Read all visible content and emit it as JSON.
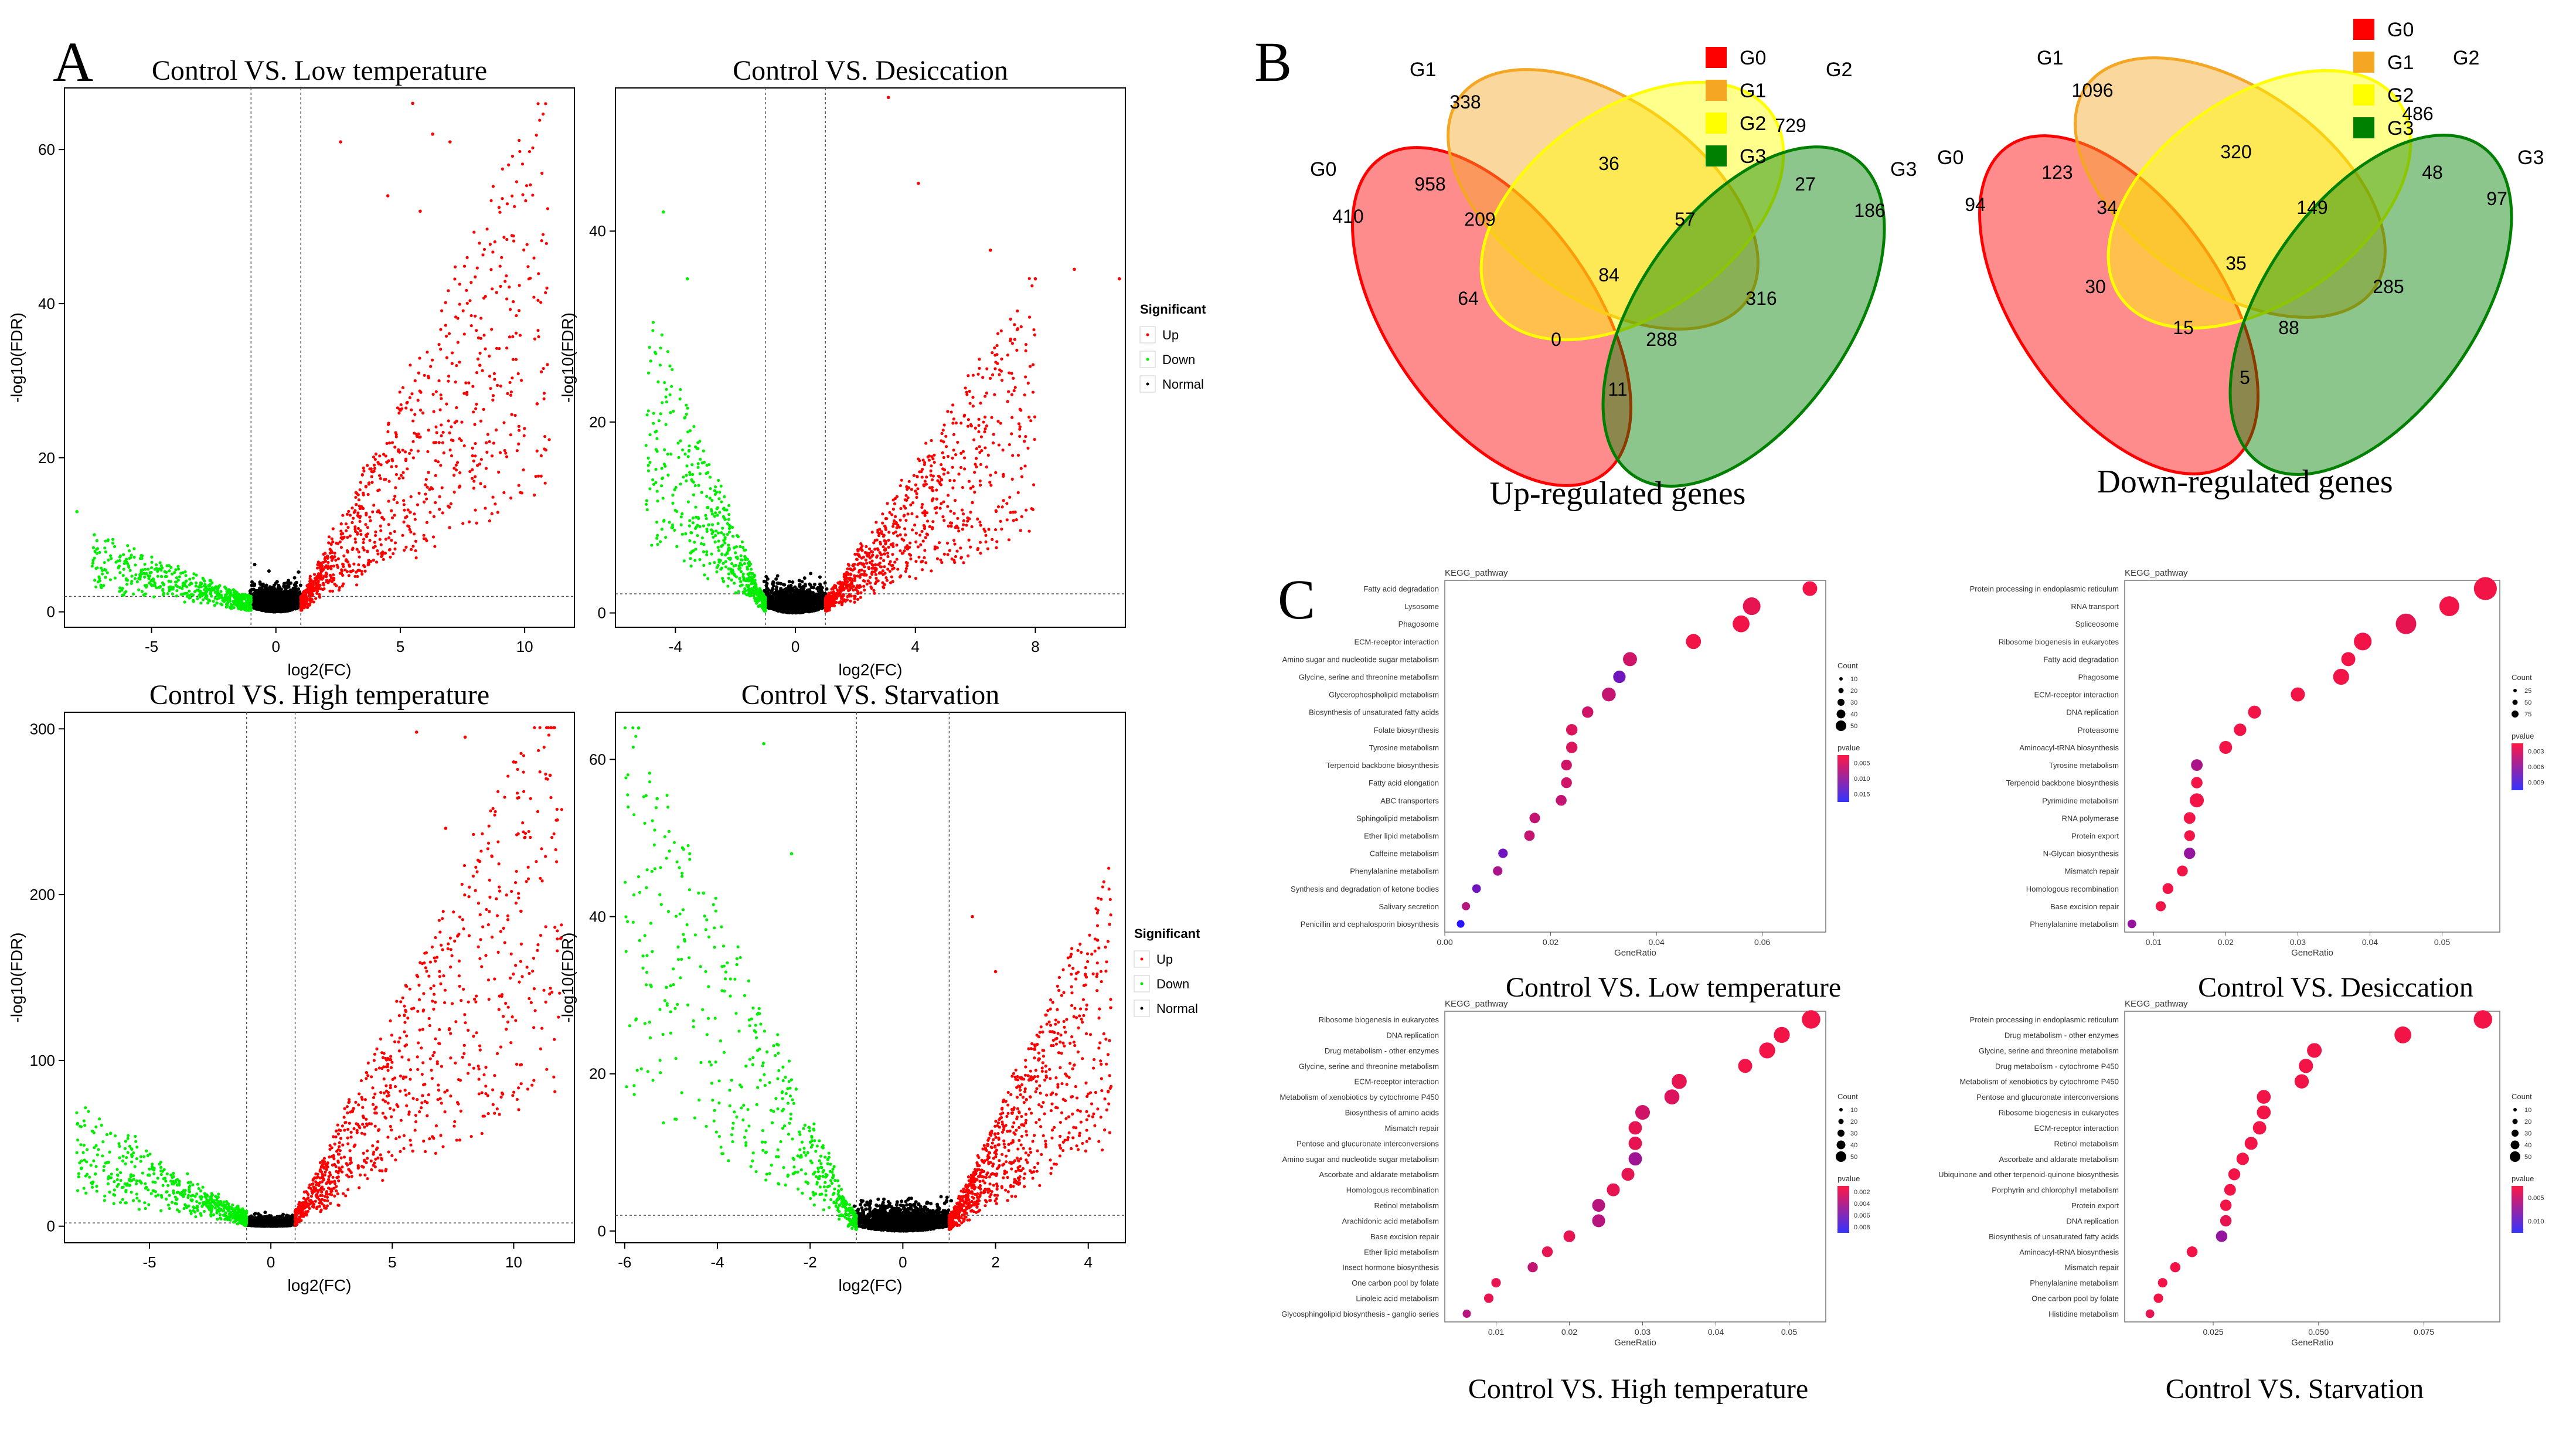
{
  "panel_labels": {
    "a": "A",
    "b": "B",
    "c": "C"
  },
  "volcano": {
    "xlabel": "log2(FC)",
    "ylabel": "-log10(FDR)",
    "legend_title": "Significant",
    "legend_items": [
      "Up",
      "Down",
      "Normal"
    ],
    "colors": {
      "up": "#ff0000",
      "down": "#00ee00",
      "normal": "#000000"
    }
  },
  "venn": {
    "set_labels": [
      "G0",
      "G1",
      "G2",
      "G3"
    ],
    "set_colors": [
      "#ff0000",
      "#f5a623",
      "#ffff00",
      "#008000"
    ],
    "legend_labels": [
      "G0",
      "G1",
      "G2",
      "G3"
    ]
  },
  "kegg": {
    "header": "KEGG_pathway",
    "xlabel": "GeneRatio",
    "count_title": "Count",
    "pvalue_title": "pvalue"
  },
  "chart_data": [
    {
      "type": "scatter",
      "subtype": "volcano",
      "title": "Control VS. Low temperature",
      "xlabel": "log2(FC)",
      "ylabel": "-log10(FDR)",
      "xlim": [
        -8.5,
        12
      ],
      "ylim": [
        -2,
        68
      ],
      "xticks": [
        -5,
        0,
        5,
        10
      ],
      "yticks": [
        0,
        20,
        40,
        60
      ],
      "x_thresholds": [
        -1,
        1
      ],
      "y_threshold": 2,
      "spread": {
        "up": 60,
        "down": 8,
        "up_max_fc": 11,
        "down_max_fc": -7.5
      },
      "outliers": [
        [
          5.5,
          66
        ],
        [
          6.3,
          62
        ],
        [
          7,
          61
        ],
        [
          2.6,
          61
        ],
        [
          5.8,
          52
        ],
        [
          10.5,
          27
        ],
        [
          -8,
          13
        ],
        [
          -7.3,
          10
        ],
        [
          4.5,
          54
        ],
        [
          8.2,
          32
        ]
      ],
      "legend_title": "Significant",
      "legend_items": [
        "Up",
        "Down",
        "Normal"
      ]
    },
    {
      "type": "scatter",
      "subtype": "volcano",
      "title": "Control VS. Desiccation",
      "xlabel": "log2(FC)",
      "ylabel": "-log10(FDR)",
      "xlim": [
        -6,
        11
      ],
      "ylim": [
        -1.5,
        55
      ],
      "xticks": [
        -4,
        0,
        4,
        8
      ],
      "yticks": [
        0,
        20,
        40
      ],
      "x_thresholds": [
        -1,
        1
      ],
      "y_threshold": 2,
      "spread": {
        "up": 30,
        "down": 28,
        "up_max_fc": 8,
        "down_max_fc": -5
      },
      "outliers": [
        [
          3.1,
          54
        ],
        [
          -4.4,
          42
        ],
        [
          4.1,
          45
        ],
        [
          6.5,
          38
        ],
        [
          8,
          35
        ],
        [
          9.3,
          36
        ],
        [
          10.8,
          35
        ],
        [
          -3.6,
          35
        ]
      ]
    },
    {
      "type": "scatter",
      "subtype": "volcano",
      "title": "Control VS. High temperature",
      "xlabel": "log2(FC)",
      "ylabel": "-log10(FDR)",
      "xlim": [
        -8.5,
        12.5
      ],
      "ylim": [
        -10,
        310
      ],
      "xticks": [
        -5,
        0,
        5,
        10
      ],
      "yticks": [
        0,
        100,
        200,
        300
      ],
      "x_thresholds": [
        -1,
        1
      ],
      "y_threshold": 2,
      "spread": {
        "up": 300,
        "down": 60,
        "up_max_fc": 12,
        "down_max_fc": -8
      },
      "outliers": [
        [
          6,
          298
        ],
        [
          8,
          295
        ],
        [
          10,
          280
        ],
        [
          11.5,
          272
        ],
        [
          8.6,
          220
        ],
        [
          11.8,
          245
        ],
        [
          10.3,
          190
        ],
        [
          7.2,
          240
        ],
        [
          -7.8,
          35
        ],
        [
          -6.6,
          56
        ]
      ],
      "legend_title": "Significant",
      "legend_items": [
        "Up",
        "Down",
        "Normal"
      ]
    },
    {
      "type": "scatter",
      "subtype": "volcano",
      "title": "Control VS. Starvation",
      "xlabel": "log2(FC)",
      "ylabel": "-log10(FDR)",
      "xlim": [
        -6.2,
        4.8
      ],
      "ylim": [
        -1.5,
        66
      ],
      "xticks": [
        -6,
        -4,
        -2,
        0,
        2,
        4
      ],
      "yticks": [
        0,
        20,
        40,
        60
      ],
      "x_thresholds": [
        -1,
        1
      ],
      "y_threshold": 2,
      "spread": {
        "up": 40,
        "down": 60,
        "up_max_fc": 4.5,
        "down_max_fc": -6
      },
      "outliers": [
        [
          -5.7,
          64
        ],
        [
          -5.3,
          55
        ],
        [
          -3,
          62
        ],
        [
          -4.3,
          43
        ],
        [
          -5.1,
          31
        ],
        [
          1.5,
          40
        ],
        [
          4.2,
          37
        ],
        [
          -2.4,
          48
        ],
        [
          2,
          33
        ]
      ]
    },
    {
      "type": "venn",
      "title": "Up-regulated genes",
      "sets": [
        "G0",
        "G1",
        "G2",
        "G3"
      ],
      "counts": {
        "G0": 410,
        "G1": 338,
        "G2": 729,
        "G3": 186,
        "G0G1": 958,
        "G1G2": 36,
        "G2G3": 27,
        "G0G3": 11,
        "G0G1G2": 209,
        "G1G2G3": 57,
        "G0G1G3": 288,
        "G0G2G3": 0,
        "G0G2": 64,
        "G1G3": 316,
        "G0G1G2G3": 84
      }
    },
    {
      "type": "venn",
      "title": "Down-regulated genes",
      "sets": [
        "G0",
        "G1",
        "G2",
        "G3"
      ],
      "counts": {
        "G0": 94,
        "G1": 1096,
        "G2": 486,
        "G3": 97,
        "G0G1": 123,
        "G1G2": 320,
        "G2G3": 48,
        "G0G3": 5,
        "G0G1G2": 34,
        "G1G2G3": 149,
        "G0G1G3": 88,
        "G0G2G3": 15,
        "G0G2": 30,
        "G1G3": 285,
        "G0G1G2G3": 35
      }
    },
    {
      "type": "scatter",
      "subtype": "dotplot",
      "title": "Control VS. Low temperature",
      "header": "KEGG_pathway",
      "xlabel": "GeneRatio",
      "xlim": [
        0,
        0.072
      ],
      "xticks": [
        "0.00",
        "0.02",
        "0.04",
        "0.06"
      ],
      "xtick_values": [
        0,
        0.02,
        0.04,
        0.06
      ],
      "legend_count_labels": [
        "10",
        "20",
        "30",
        "40",
        "50"
      ],
      "legend_pvalue_labels": [
        "0.005",
        "0.010",
        "0.015"
      ],
      "pathways": [
        {
          "name": "Fatty acid degradation",
          "ratio": 0.069,
          "count": 28,
          "p": 0.001
        },
        {
          "name": "Lysosome",
          "ratio": 0.058,
          "count": 45,
          "p": 0.002
        },
        {
          "name": "Phagosome",
          "ratio": 0.056,
          "count": 40,
          "p": 0.001
        },
        {
          "name": "ECM-receptor interaction",
          "ratio": 0.047,
          "count": 30,
          "p": 0.001
        },
        {
          "name": "Amino sugar and nucleotide sugar metabolism",
          "ratio": 0.035,
          "count": 25,
          "p": 0.004
        },
        {
          "name": "Glycine, serine and threonine metabolism",
          "ratio": 0.033,
          "count": 18,
          "p": 0.012
        },
        {
          "name": "Glycerophospholipid metabolism",
          "ratio": 0.031,
          "count": 24,
          "p": 0.005
        },
        {
          "name": "Biosynthesis of unsaturated fatty acids",
          "ratio": 0.027,
          "count": 14,
          "p": 0.004
        },
        {
          "name": "Folate biosynthesis",
          "ratio": 0.024,
          "count": 14,
          "p": 0.003
        },
        {
          "name": "Tyrosine metabolism",
          "ratio": 0.024,
          "count": 14,
          "p": 0.003
        },
        {
          "name": "Terpenoid backbone biosynthesis",
          "ratio": 0.023,
          "count": 12,
          "p": 0.004
        },
        {
          "name": "Fatty acid elongation",
          "ratio": 0.023,
          "count": 12,
          "p": 0.004
        },
        {
          "name": "ABC transporters",
          "ratio": 0.022,
          "count": 12,
          "p": 0.005
        },
        {
          "name": "Sphingolipid metabolism",
          "ratio": 0.017,
          "count": 11,
          "p": 0.005
        },
        {
          "name": "Ether lipid metabolism",
          "ratio": 0.016,
          "count": 11,
          "p": 0.005
        },
        {
          "name": "Caffeine metabolism",
          "ratio": 0.011,
          "count": 8,
          "p": 0.012
        },
        {
          "name": "Phenylalanine metabolism",
          "ratio": 0.01,
          "count": 8,
          "p": 0.007
        },
        {
          "name": "Synthesis and degradation of ketone bodies",
          "ratio": 0.006,
          "count": 6,
          "p": 0.012
        },
        {
          "name": "Salivary secretion",
          "ratio": 0.004,
          "count": 5,
          "p": 0.006
        },
        {
          "name": "Penicillin and cephalosporin biosynthesis",
          "ratio": 0.003,
          "count": 4,
          "p": 0.018
        }
      ]
    },
    {
      "type": "scatter",
      "subtype": "dotplot",
      "title": "Control VS. Desiccation",
      "header": "KEGG_pathway",
      "xlabel": "GeneRatio",
      "xlim": [
        0.006,
        0.058
      ],
      "xticks": [
        "0.01",
        "0.02",
        "0.03",
        "0.04",
        "0.05"
      ],
      "xtick_values": [
        0.01,
        0.02,
        0.03,
        0.04,
        0.05
      ],
      "legend_count_labels": [
        "25",
        "50",
        "75"
      ],
      "legend_pvalue_labels": [
        "0.003",
        "0.006",
        "0.009"
      ],
      "pathways": [
        {
          "name": "Protein processing in endoplasmic reticulum",
          "ratio": 0.056,
          "count": 85,
          "p": 0.001
        },
        {
          "name": "RNA transport",
          "ratio": 0.051,
          "count": 60,
          "p": 0.001
        },
        {
          "name": "Spliceosome",
          "ratio": 0.045,
          "count": 65,
          "p": 0.002
        },
        {
          "name": "Ribosome biogenesis in eukaryotes",
          "ratio": 0.039,
          "count": 45,
          "p": 0.001
        },
        {
          "name": "Fatty acid degradation",
          "ratio": 0.037,
          "count": 25,
          "p": 0.001
        },
        {
          "name": "Phagosome",
          "ratio": 0.036,
          "count": 35,
          "p": 0.001
        },
        {
          "name": "ECM-receptor interaction",
          "ratio": 0.03,
          "count": 25,
          "p": 0.001
        },
        {
          "name": "DNA replication",
          "ratio": 0.024,
          "count": 20,
          "p": 0.001
        },
        {
          "name": "Proteasome",
          "ratio": 0.022,
          "count": 18,
          "p": 0.001
        },
        {
          "name": "Aminoacyl-tRNA biosynthesis",
          "ratio": 0.02,
          "count": 20,
          "p": 0.001
        },
        {
          "name": "Tyrosine metabolism",
          "ratio": 0.016,
          "count": 15,
          "p": 0.007
        },
        {
          "name": "Terpenoid backbone biosynthesis",
          "ratio": 0.016,
          "count": 14,
          "p": 0.001
        },
        {
          "name": "Pyrimidine metabolism",
          "ratio": 0.016,
          "count": 25,
          "p": 0.001
        },
        {
          "name": "RNA polymerase",
          "ratio": 0.015,
          "count": 15,
          "p": 0.001
        },
        {
          "name": "Protein export",
          "ratio": 0.015,
          "count": 12,
          "p": 0.001
        },
        {
          "name": "N-Glycan biosynthesis",
          "ratio": 0.015,
          "count": 14,
          "p": 0.009
        },
        {
          "name": "Mismatch repair",
          "ratio": 0.014,
          "count": 12,
          "p": 0.001
        },
        {
          "name": "Homologous recombination",
          "ratio": 0.012,
          "count": 12,
          "p": 0.001
        },
        {
          "name": "Base excision repair",
          "ratio": 0.011,
          "count": 10,
          "p": 0.001
        },
        {
          "name": "Phenylalanine metabolism",
          "ratio": 0.007,
          "count": 6,
          "p": 0.009
        }
      ]
    },
    {
      "type": "scatter",
      "subtype": "dotplot",
      "title": "Control VS. High temperature",
      "header": "KEGG_pathway",
      "xlabel": "GeneRatio",
      "xlim": [
        0.003,
        0.055
      ],
      "xticks": [
        "0.01",
        "0.02",
        "0.03",
        "0.04",
        "0.05"
      ],
      "xtick_values": [
        0.01,
        0.02,
        0.03,
        0.04,
        0.05
      ],
      "legend_count_labels": [
        "10",
        "20",
        "30",
        "40",
        "50"
      ],
      "legend_pvalue_labels": [
        "0.002",
        "0.004",
        "0.006",
        "0.008"
      ],
      "pathways": [
        {
          "name": "Ribosome biogenesis in eukaryotes",
          "ratio": 0.053,
          "count": 50,
          "p": 0.001
        },
        {
          "name": "DNA replication",
          "ratio": 0.049,
          "count": 35,
          "p": 0.001
        },
        {
          "name": "Drug metabolism - other enzymes",
          "ratio": 0.047,
          "count": 35,
          "p": 0.001
        },
        {
          "name": "Glycine, serine and threonine metabolism",
          "ratio": 0.044,
          "count": 25,
          "p": 0.001
        },
        {
          "name": "ECM-receptor interaction",
          "ratio": 0.035,
          "count": 30,
          "p": 0.002
        },
        {
          "name": "Metabolism of xenobiotics by cytochrome P450",
          "ratio": 0.034,
          "count": 30,
          "p": 0.003
        },
        {
          "name": "Biosynthesis of amino acids",
          "ratio": 0.03,
          "count": 28,
          "p": 0.004
        },
        {
          "name": "Mismatch repair",
          "ratio": 0.029,
          "count": 22,
          "p": 0.002
        },
        {
          "name": "Pentose and glucuronate interconversions",
          "ratio": 0.029,
          "count": 22,
          "p": 0.002
        },
        {
          "name": "Amino sugar and nucleotide sugar metabolism",
          "ratio": 0.029,
          "count": 22,
          "p": 0.008
        },
        {
          "name": "Ascorbate and aldarate metabolism",
          "ratio": 0.028,
          "count": 20,
          "p": 0.002
        },
        {
          "name": "Homologous recombination",
          "ratio": 0.026,
          "count": 20,
          "p": 0.002
        },
        {
          "name": "Retinol metabolism",
          "ratio": 0.024,
          "count": 20,
          "p": 0.006
        },
        {
          "name": "Arachidonic acid metabolism",
          "ratio": 0.024,
          "count": 20,
          "p": 0.006
        },
        {
          "name": "Base excision repair",
          "ratio": 0.02,
          "count": 15,
          "p": 0.002
        },
        {
          "name": "Ether lipid metabolism",
          "ratio": 0.017,
          "count": 12,
          "p": 0.002
        },
        {
          "name": "Insect hormone biosynthesis",
          "ratio": 0.015,
          "count": 10,
          "p": 0.005
        },
        {
          "name": "One carbon pool by folate",
          "ratio": 0.01,
          "count": 8,
          "p": 0.002
        },
        {
          "name": "Linoleic acid metabolism",
          "ratio": 0.009,
          "count": 8,
          "p": 0.002
        },
        {
          "name": "Glycosphingolipid biosynthesis - ganglio series",
          "ratio": 0.006,
          "count": 5,
          "p": 0.006
        }
      ]
    },
    {
      "type": "scatter",
      "subtype": "dotplot",
      "title": "Control VS. Starvation",
      "header": "KEGG_pathway",
      "xlabel": "GeneRatio",
      "xlim": [
        0.004,
        0.093
      ],
      "xticks": [
        "0.025",
        "0.050",
        "0.075"
      ],
      "xtick_values": [
        0.025,
        0.05,
        0.075
      ],
      "legend_count_labels": [
        "10",
        "20",
        "30",
        "40",
        "50"
      ],
      "legend_pvalue_labels": [
        "0.005",
        "0.010"
      ],
      "pathways": [
        {
          "name": "Protein processing in endoplasmic reticulum",
          "ratio": 0.089,
          "count": 50,
          "p": 0.001
        },
        {
          "name": "Drug metabolism - other enzymes",
          "ratio": 0.07,
          "count": 40,
          "p": 0.001
        },
        {
          "name": "Glycine, serine and threonine metabolism",
          "ratio": 0.049,
          "count": 28,
          "p": 0.001
        },
        {
          "name": "Drug metabolism - cytochrome P450",
          "ratio": 0.047,
          "count": 26,
          "p": 0.001
        },
        {
          "name": "Metabolism of xenobiotics by cytochrome P450",
          "ratio": 0.046,
          "count": 26,
          "p": 0.001
        },
        {
          "name": "Pentose and glucuronate interconversions",
          "ratio": 0.037,
          "count": 24,
          "p": 0.001
        },
        {
          "name": "Ribosome biogenesis in eukaryotes",
          "ratio": 0.037,
          "count": 24,
          "p": 0.001
        },
        {
          "name": "ECM-receptor interaction",
          "ratio": 0.036,
          "count": 22,
          "p": 0.001
        },
        {
          "name": "Retinol metabolism",
          "ratio": 0.034,
          "count": 20,
          "p": 0.001
        },
        {
          "name": "Ascorbate and aldarate metabolism",
          "ratio": 0.032,
          "count": 18,
          "p": 0.001
        },
        {
          "name": "Ubiquinone and other terpenoid-quinone biosynthesis",
          "ratio": 0.03,
          "count": 16,
          "p": 0.001
        },
        {
          "name": "Porphyrin and chlorophyll metabolism",
          "ratio": 0.029,
          "count": 15,
          "p": 0.001
        },
        {
          "name": "Protein export",
          "ratio": 0.028,
          "count": 14,
          "p": 0.001
        },
        {
          "name": "DNA replication",
          "ratio": 0.028,
          "count": 14,
          "p": 0.002
        },
        {
          "name": "Biosynthesis of unsaturated fatty acids",
          "ratio": 0.027,
          "count": 14,
          "p": 0.009
        },
        {
          "name": "Aminoacyl-tRNA biosynthesis",
          "ratio": 0.02,
          "count": 12,
          "p": 0.001
        },
        {
          "name": "Mismatch repair",
          "ratio": 0.016,
          "count": 10,
          "p": 0.001
        },
        {
          "name": "Phenylalanine metabolism",
          "ratio": 0.013,
          "count": 8,
          "p": 0.001
        },
        {
          "name": "One carbon pool by folate",
          "ratio": 0.012,
          "count": 8,
          "p": 0.001
        },
        {
          "name": "Histidine metabolism",
          "ratio": 0.01,
          "count": 6,
          "p": 0.002
        }
      ]
    }
  ]
}
